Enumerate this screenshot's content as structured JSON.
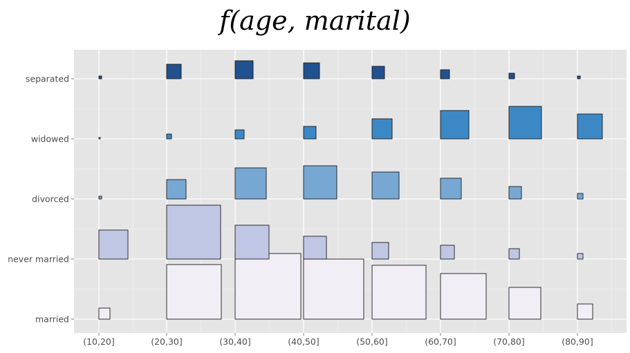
{
  "chart_data": {
    "type": "mosaic",
    "title": "f(age, marital)",
    "x_categories": [
      "(10,20]",
      "(20,30]",
      "(30,40]",
      "(40,50]",
      "(50,60]",
      "(60,70]",
      "(70,80]",
      "(80,90]"
    ],
    "y_categories": [
      "married",
      "never married",
      "divorced",
      "widowed",
      "separated"
    ],
    "series": [
      {
        "name": "married",
        "color": "#f2eef6",
        "values": [
          0.16,
          0.79,
          0.95,
          0.87,
          0.78,
          0.66,
          0.46,
          0.22
        ]
      },
      {
        "name": "never married",
        "color": "#c0c7e4",
        "values": [
          0.42,
          0.78,
          0.49,
          0.33,
          0.24,
          0.2,
          0.15,
          0.08
        ]
      },
      {
        "name": "divorced",
        "color": "#77a8d3",
        "values": [
          0.04,
          0.28,
          0.45,
          0.48,
          0.39,
          0.3,
          0.18,
          0.08
        ]
      },
      {
        "name": "widowed",
        "color": "#3c88c5",
        "values": [
          0.02,
          0.07,
          0.13,
          0.18,
          0.29,
          0.41,
          0.47,
          0.36
        ]
      },
      {
        "name": "separated",
        "color": "#21528f",
        "values": [
          0.04,
          0.21,
          0.26,
          0.23,
          0.18,
          0.13,
          0.08,
          0.04
        ]
      }
    ],
    "grid": true
  }
}
